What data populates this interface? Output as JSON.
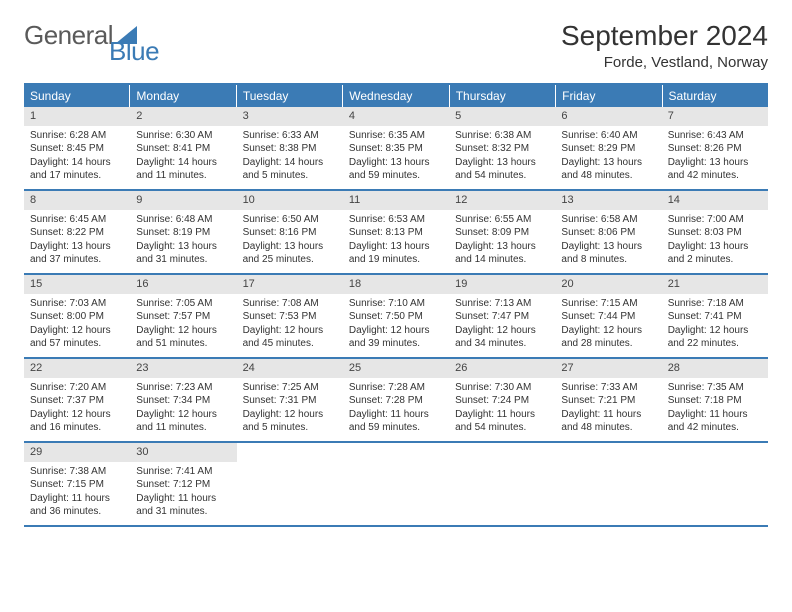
{
  "logo": {
    "text1": "General",
    "text2": "Blue"
  },
  "title": "September 2024",
  "location": "Forde, Vestland, Norway",
  "colors": {
    "header_blue": "#3b7bb5",
    "daynum_bg": "#e6e6e6",
    "text": "#333333"
  },
  "weekdays": [
    "Sunday",
    "Monday",
    "Tuesday",
    "Wednesday",
    "Thursday",
    "Friday",
    "Saturday"
  ],
  "weeks": [
    [
      {
        "n": "1",
        "sunrise": "6:28 AM",
        "sunset": "8:45 PM",
        "daylight": "14 hours and 17 minutes."
      },
      {
        "n": "2",
        "sunrise": "6:30 AM",
        "sunset": "8:41 PM",
        "daylight": "14 hours and 11 minutes."
      },
      {
        "n": "3",
        "sunrise": "6:33 AM",
        "sunset": "8:38 PM",
        "daylight": "14 hours and 5 minutes."
      },
      {
        "n": "4",
        "sunrise": "6:35 AM",
        "sunset": "8:35 PM",
        "daylight": "13 hours and 59 minutes."
      },
      {
        "n": "5",
        "sunrise": "6:38 AM",
        "sunset": "8:32 PM",
        "daylight": "13 hours and 54 minutes."
      },
      {
        "n": "6",
        "sunrise": "6:40 AM",
        "sunset": "8:29 PM",
        "daylight": "13 hours and 48 minutes."
      },
      {
        "n": "7",
        "sunrise": "6:43 AM",
        "sunset": "8:26 PM",
        "daylight": "13 hours and 42 minutes."
      }
    ],
    [
      {
        "n": "8",
        "sunrise": "6:45 AM",
        "sunset": "8:22 PM",
        "daylight": "13 hours and 37 minutes."
      },
      {
        "n": "9",
        "sunrise": "6:48 AM",
        "sunset": "8:19 PM",
        "daylight": "13 hours and 31 minutes."
      },
      {
        "n": "10",
        "sunrise": "6:50 AM",
        "sunset": "8:16 PM",
        "daylight": "13 hours and 25 minutes."
      },
      {
        "n": "11",
        "sunrise": "6:53 AM",
        "sunset": "8:13 PM",
        "daylight": "13 hours and 19 minutes."
      },
      {
        "n": "12",
        "sunrise": "6:55 AM",
        "sunset": "8:09 PM",
        "daylight": "13 hours and 14 minutes."
      },
      {
        "n": "13",
        "sunrise": "6:58 AM",
        "sunset": "8:06 PM",
        "daylight": "13 hours and 8 minutes."
      },
      {
        "n": "14",
        "sunrise": "7:00 AM",
        "sunset": "8:03 PM",
        "daylight": "13 hours and 2 minutes."
      }
    ],
    [
      {
        "n": "15",
        "sunrise": "7:03 AM",
        "sunset": "8:00 PM",
        "daylight": "12 hours and 57 minutes."
      },
      {
        "n": "16",
        "sunrise": "7:05 AM",
        "sunset": "7:57 PM",
        "daylight": "12 hours and 51 minutes."
      },
      {
        "n": "17",
        "sunrise": "7:08 AM",
        "sunset": "7:53 PM",
        "daylight": "12 hours and 45 minutes."
      },
      {
        "n": "18",
        "sunrise": "7:10 AM",
        "sunset": "7:50 PM",
        "daylight": "12 hours and 39 minutes."
      },
      {
        "n": "19",
        "sunrise": "7:13 AM",
        "sunset": "7:47 PM",
        "daylight": "12 hours and 34 minutes."
      },
      {
        "n": "20",
        "sunrise": "7:15 AM",
        "sunset": "7:44 PM",
        "daylight": "12 hours and 28 minutes."
      },
      {
        "n": "21",
        "sunrise": "7:18 AM",
        "sunset": "7:41 PM",
        "daylight": "12 hours and 22 minutes."
      }
    ],
    [
      {
        "n": "22",
        "sunrise": "7:20 AM",
        "sunset": "7:37 PM",
        "daylight": "12 hours and 16 minutes."
      },
      {
        "n": "23",
        "sunrise": "7:23 AM",
        "sunset": "7:34 PM",
        "daylight": "12 hours and 11 minutes."
      },
      {
        "n": "24",
        "sunrise": "7:25 AM",
        "sunset": "7:31 PM",
        "daylight": "12 hours and 5 minutes."
      },
      {
        "n": "25",
        "sunrise": "7:28 AM",
        "sunset": "7:28 PM",
        "daylight": "11 hours and 59 minutes."
      },
      {
        "n": "26",
        "sunrise": "7:30 AM",
        "sunset": "7:24 PM",
        "daylight": "11 hours and 54 minutes."
      },
      {
        "n": "27",
        "sunrise": "7:33 AM",
        "sunset": "7:21 PM",
        "daylight": "11 hours and 48 minutes."
      },
      {
        "n": "28",
        "sunrise": "7:35 AM",
        "sunset": "7:18 PM",
        "daylight": "11 hours and 42 minutes."
      }
    ],
    [
      {
        "n": "29",
        "sunrise": "7:38 AM",
        "sunset": "7:15 PM",
        "daylight": "11 hours and 36 minutes."
      },
      {
        "n": "30",
        "sunrise": "7:41 AM",
        "sunset": "7:12 PM",
        "daylight": "11 hours and 31 minutes."
      },
      null,
      null,
      null,
      null,
      null
    ]
  ],
  "labels": {
    "sunrise": "Sunrise:",
    "sunset": "Sunset:",
    "daylight": "Daylight:"
  }
}
